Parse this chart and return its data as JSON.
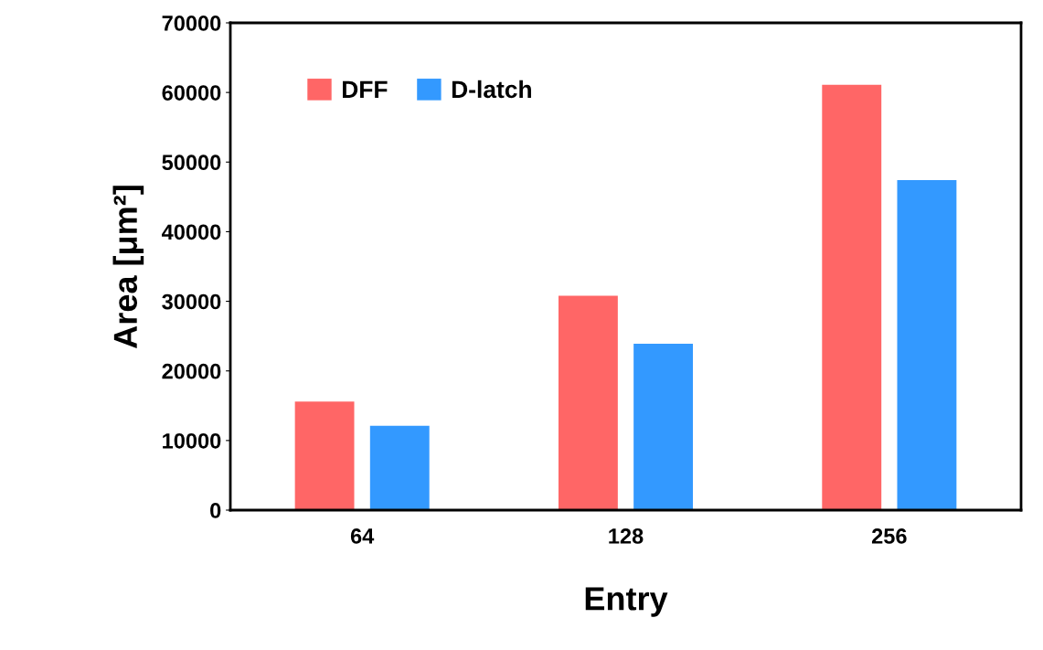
{
  "chart_data": {
    "type": "bar",
    "xlabel": "Entry",
    "ylabel": "Area [μm²]",
    "categories": [
      "64",
      "128",
      "256"
    ],
    "series": [
      {
        "name": "DFF",
        "color": "#ff6666",
        "values": [
          15600,
          30800,
          61100
        ]
      },
      {
        "name": "D-latch",
        "color": "#3399ff",
        "values": [
          12100,
          23900,
          47400
        ]
      }
    ],
    "ylim": [
      0,
      70000
    ],
    "yticks": [
      0,
      10000,
      20000,
      30000,
      40000,
      50000,
      60000,
      70000
    ],
    "grid": false,
    "legend": "top left"
  }
}
